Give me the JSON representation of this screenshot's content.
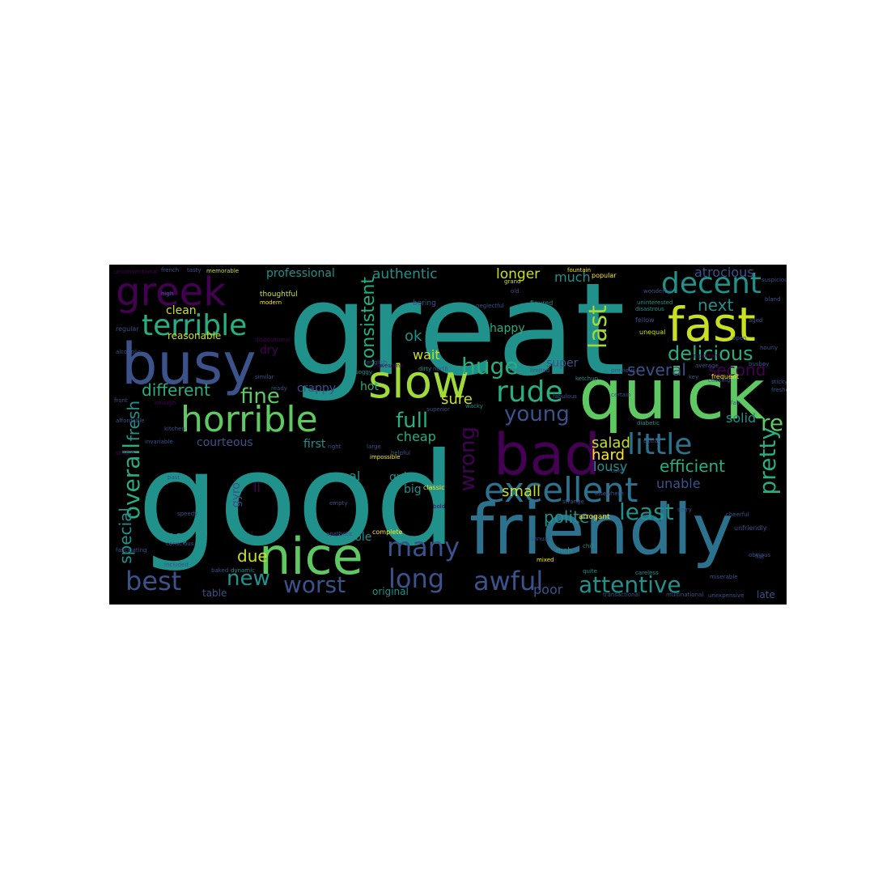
{
  "figure": {
    "type": "word cloud",
    "background": "#000000",
    "palette": [
      "#440154",
      "#3b528b",
      "#21918c",
      "#5ec962",
      "#fde725"
    ]
  },
  "words": [
    {
      "text": "great",
      "color": "#21918c"
    },
    {
      "text": "good",
      "color": "#21918c"
    },
    {
      "text": "friendly",
      "color": "#2c728e"
    },
    {
      "text": "quick",
      "color": "#5ec962"
    },
    {
      "text": "busy",
      "color": "#3b528b"
    },
    {
      "text": "bad",
      "color": "#440154"
    },
    {
      "text": "nice",
      "color": "#5ec962"
    },
    {
      "text": "fast",
      "color": "#c8e020"
    },
    {
      "text": "slow",
      "color": "#a0da39"
    },
    {
      "text": "greek",
      "color": "#440154"
    },
    {
      "text": "horrible",
      "color": "#5ec962"
    },
    {
      "text": "excellent",
      "color": "#2c728e"
    },
    {
      "text": "terrible",
      "color": "#28ae80"
    },
    {
      "text": "decent",
      "color": "#21918c"
    },
    {
      "text": "little",
      "color": "#2c728e"
    },
    {
      "text": "rude",
      "color": "#28ae80"
    },
    {
      "text": "many",
      "color": "#3b528b"
    },
    {
      "text": "long",
      "color": "#3b528b"
    },
    {
      "text": "awful",
      "color": "#3b528b"
    },
    {
      "text": "best",
      "color": "#3b528b"
    },
    {
      "text": "attentive",
      "color": "#21918c"
    },
    {
      "text": "overall",
      "color": "#28ae80"
    },
    {
      "text": "worst",
      "color": "#3b528b"
    },
    {
      "text": "last",
      "color": "#a0da39"
    },
    {
      "text": "wrong",
      "color": "#440154"
    },
    {
      "text": "pretty",
      "color": "#28ae80"
    },
    {
      "text": "new",
      "color": "#21918c"
    },
    {
      "text": "huge",
      "color": "#28ae80"
    },
    {
      "text": "least",
      "color": "#21918c"
    },
    {
      "text": "delicious",
      "color": "#28ae80"
    },
    {
      "text": "young",
      "color": "#3b528b"
    },
    {
      "text": "fine",
      "color": "#5ec962"
    },
    {
      "text": "full",
      "color": "#28ae80"
    },
    {
      "text": "consistent",
      "color": "#28ae80"
    },
    {
      "text": "next",
      "color": "#21918c"
    },
    {
      "text": "efficient",
      "color": "#28ae80"
    },
    {
      "text": "re",
      "color": "#5ec962"
    },
    {
      "text": "different",
      "color": "#28ae80"
    },
    {
      "text": "fresh",
      "color": "#21918c"
    },
    {
      "text": "several",
      "color": "#3b528b"
    },
    {
      "text": "second",
      "color": "#440154"
    },
    {
      "text": "authentic",
      "color": "#21918c"
    },
    {
      "text": "professional",
      "color": "#21918c"
    },
    {
      "text": "longer",
      "color": "#c8e020"
    },
    {
      "text": "much",
      "color": "#21918c"
    },
    {
      "text": "atrocious",
      "color": "#3b528b"
    },
    {
      "text": "special",
      "color": "#21918c"
    },
    {
      "text": "due",
      "color": "#c8e020"
    },
    {
      "text": "polite",
      "color": "#21918c"
    },
    {
      "text": "salad",
      "color": "#c8e020"
    },
    {
      "text": "hard",
      "color": "#fde725"
    },
    {
      "text": "lousy",
      "color": "#21918c"
    },
    {
      "text": "unable",
      "color": "#3b528b"
    },
    {
      "text": "solid",
      "color": "#21918c"
    },
    {
      "text": "small",
      "color": "#c8e020"
    },
    {
      "text": "poor",
      "color": "#3b528b"
    },
    {
      "text": "sure",
      "color": "#c8e020"
    },
    {
      "text": "cheap",
      "color": "#28ae80"
    },
    {
      "text": "ok",
      "color": "#21918c"
    },
    {
      "text": "wait",
      "color": "#c8e020"
    },
    {
      "text": "super",
      "color": "#3b528b"
    },
    {
      "text": "happy",
      "color": "#28ae80"
    },
    {
      "text": "quiet",
      "color": "#21918c"
    },
    {
      "text": "hot",
      "color": "#28ae80"
    },
    {
      "text": "real",
      "color": "#21918c"
    },
    {
      "text": "big",
      "color": "#21918c"
    },
    {
      "text": "clean",
      "color": "#c8e020"
    },
    {
      "text": "reasonable",
      "color": "#c8e020"
    },
    {
      "text": "dry",
      "color": "#440154"
    },
    {
      "text": "crappy",
      "color": "#3b528b"
    },
    {
      "text": "courteous",
      "color": "#3b528b"
    },
    {
      "text": "first",
      "color": "#21918c"
    },
    {
      "text": "easy",
      "color": "#21918c"
    },
    {
      "text": "whole",
      "color": "#21918c"
    },
    {
      "text": "original",
      "color": "#21918c"
    },
    {
      "text": "late",
      "color": "#3b528b"
    },
    {
      "text": "table",
      "color": "#3b528b"
    },
    {
      "text": "gyro",
      "color": "#3b528b"
    },
    {
      "text": "ll",
      "color": "#440154"
    },
    {
      "text": "thoughtful",
      "color": "#c8e020"
    },
    {
      "text": "boring",
      "color": "#3b528b"
    },
    {
      "text": "neglectful",
      "color": "#3b528b"
    },
    {
      "text": "figured",
      "color": "#21918c"
    },
    {
      "text": "unequal",
      "color": "#c8e020"
    },
    {
      "text": "average",
      "color": "#3b528b"
    },
    {
      "text": "frequent",
      "color": "#fde725"
    },
    {
      "text": "important",
      "color": "#440154"
    },
    {
      "text": "popular",
      "color": "#fde725"
    },
    {
      "text": "memorable",
      "color": "#c8e020"
    },
    {
      "text": "tasty",
      "color": "#3b528b"
    },
    {
      "text": "high",
      "color": "#3b528b"
    },
    {
      "text": "regular",
      "color": "#3b528b"
    },
    {
      "text": "modern",
      "color": "#fde725"
    },
    {
      "text": "helpful",
      "color": "#3b528b"
    },
    {
      "text": "classic",
      "color": "#fde725"
    },
    {
      "text": "complete",
      "color": "#fde725"
    },
    {
      "text": "empty",
      "color": "#3b528b"
    },
    {
      "text": "meh",
      "color": "#21918c"
    },
    {
      "text": "mixed",
      "color": "#fde725"
    },
    {
      "text": "quite",
      "color": "#21918c"
    },
    {
      "text": "unfriendly",
      "color": "#3b528b"
    },
    {
      "text": "arrogant",
      "color": "#fde725"
    },
    {
      "text": "careless",
      "color": "#21918c"
    },
    {
      "text": "miserable",
      "color": "#3b528b"
    },
    {
      "text": "transactional",
      "color": "#3b528b"
    },
    {
      "text": "multinational",
      "color": "#3b528b"
    },
    {
      "text": "unexpensive",
      "color": "#3b528b"
    },
    {
      "text": "unapologetic",
      "color": "#21918c"
    },
    {
      "text": "diabetic",
      "color": "#21918c"
    },
    {
      "text": "dynamic",
      "color": "#21918c"
    },
    {
      "text": "baked",
      "color": "#3b528b"
    },
    {
      "text": "large",
      "color": "#3b528b"
    },
    {
      "text": "right",
      "color": "#3b528b"
    },
    {
      "text": "enough",
      "color": "#440154"
    },
    {
      "text": "similar",
      "color": "#3b528b"
    },
    {
      "text": "ready",
      "color": "#3b528b"
    },
    {
      "text": "less",
      "color": "#21918c"
    },
    {
      "text": "soggy",
      "color": "#21918c"
    },
    {
      "text": "english",
      "color": "#3b528b"
    },
    {
      "text": "dirty",
      "color": "#21918c"
    },
    {
      "text": "wacky",
      "color": "#21918c"
    },
    {
      "text": "impossible",
      "color": "#fde725"
    },
    {
      "text": "past",
      "color": "#3b528b"
    },
    {
      "text": "speedy",
      "color": "#3b528b"
    },
    {
      "text": "included",
      "color": "#3b528b"
    },
    {
      "text": "conscious",
      "color": "#3b528b"
    },
    {
      "text": "unconventional",
      "color": "#440154"
    },
    {
      "text": "french",
      "color": "#3b528b"
    },
    {
      "text": "dispositional",
      "color": "#440154"
    },
    {
      "text": "alcoholic",
      "color": "#3b528b"
    },
    {
      "text": "fellow",
      "color": "#3b528b"
    },
    {
      "text": "cooking",
      "color": "#3b528b"
    },
    {
      "text": "fountain",
      "color": "#fde725"
    },
    {
      "text": "grand",
      "color": "#c8e020"
    },
    {
      "text": "old",
      "color": "#3b528b"
    },
    {
      "text": "disastrous",
      "color": "#21918c"
    },
    {
      "text": "uninterested",
      "color": "#21918c"
    },
    {
      "text": "suspicious",
      "color": "#3b528b"
    },
    {
      "text": "bland",
      "color": "#3b528b"
    },
    {
      "text": "ketchup",
      "color": "#21918c"
    },
    {
      "text": "busboy",
      "color": "#3b528b"
    },
    {
      "text": "key",
      "color": "#3b528b"
    },
    {
      "text": "hourly",
      "color": "#3b528b"
    },
    {
      "text": "obvious",
      "color": "#3b528b"
    },
    {
      "text": "cheerful",
      "color": "#3b528b"
    },
    {
      "text": "affordable",
      "color": "#3b528b"
    },
    {
      "text": "elsewhere",
      "color": "#3b528b"
    },
    {
      "text": "cold",
      "color": "#3b528b"
    },
    {
      "text": "north",
      "color": "#3b528b"
    },
    {
      "text": "front",
      "color": "#3b528b"
    },
    {
      "text": "simple",
      "color": "#440154"
    },
    {
      "text": "invariable",
      "color": "#3b528b"
    },
    {
      "text": "fabulous",
      "color": "#3b528b"
    },
    {
      "text": "extra",
      "color": "#3b528b"
    },
    {
      "text": "superior",
      "color": "#3b528b"
    },
    {
      "text": "awesome",
      "color": "#440154"
    },
    {
      "text": "apathetic",
      "color": "#3b528b"
    },
    {
      "text": "strange",
      "color": "#3b528b"
    },
    {
      "text": "sorry",
      "color": "#3b528b"
    },
    {
      "text": "fair",
      "color": "#3b528b"
    },
    {
      "text": "fascinating",
      "color": "#3b528b"
    },
    {
      "text": "annual",
      "color": "#3b528b"
    },
    {
      "text": "bold",
      "color": "#440154"
    },
    {
      "text": "certain",
      "color": "#3b528b"
    },
    {
      "text": "chill",
      "color": "#21918c"
    },
    {
      "text": "open",
      "color": "#3b528b"
    },
    {
      "text": "sticky",
      "color": "#3b528b"
    },
    {
      "text": "fresher",
      "color": "#3b528b"
    },
    {
      "text": "kitchen",
      "color": "#3b528b"
    },
    {
      "text": "limited",
      "color": "#3b528b"
    },
    {
      "text": "flat",
      "color": "#3b528b"
    },
    {
      "text": "aged",
      "color": "#3b528b"
    },
    {
      "text": "wonderful",
      "color": "#3b528b"
    },
    {
      "text": "previous",
      "color": "#3b528b"
    }
  ]
}
